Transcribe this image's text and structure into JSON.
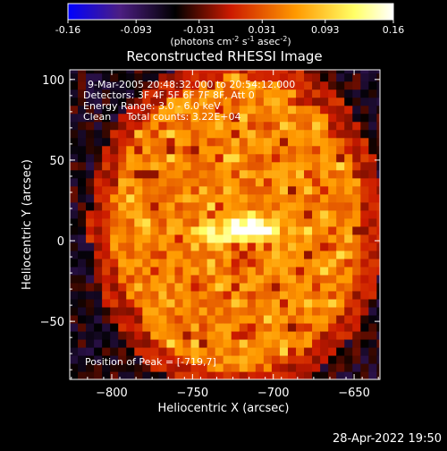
{
  "chart_data": {
    "type": "heatmap",
    "title": "Reconstructed RHESSI Image",
    "xlabel": "Heliocentric X (arcsec)",
    "ylabel": "Heliocentric Y (arcsec)",
    "xlim": [
      -826,
      -634
    ],
    "ylim": [
      -86,
      106
    ],
    "x_ticks": [
      -800,
      -750,
      -700,
      -650
    ],
    "y_ticks": [
      -50,
      0,
      50,
      100
    ],
    "colorbar": {
      "min": -0.16,
      "max": 0.16,
      "ticks": [
        -0.16,
        -0.093,
        -0.031,
        0.031,
        0.093,
        0.16
      ],
      "tick_labels": [
        "-0.16",
        "-0.093",
        "-0.031",
        "0.031",
        "0.093",
        "0.16"
      ],
      "units_main": "(photons cm",
      "units_exp1": "-2",
      "units_mid1": " s",
      "units_exp2": "-1",
      "units_mid2": " asec",
      "units_exp3": "-2",
      "units_end": ")",
      "stops": [
        "#0000ff",
        "#4c1e82",
        "#000000",
        "#cc1a00",
        "#ff9900",
        "#ffff66",
        "#ffffff"
      ]
    },
    "peak": {
      "x": -719,
      "y": 7
    },
    "annotations": [
      "9-Mar-2005 20:48:32.000 to 20:54:12.000",
      "Detectors: 3F 4F 5F 6F 7F 8F, Att 0",
      "Energy Range: 3.0 - 6.0 keV",
      "Clean     Total counts: 3.22E+04"
    ],
    "peak_label": "Position of Peak = [-719,7]"
  },
  "footer": {
    "timestamp": "28-Apr-2022 19:50"
  }
}
